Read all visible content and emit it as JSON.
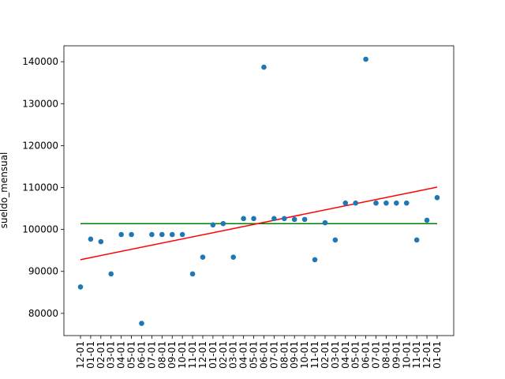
{
  "chart_data": {
    "type": "scatter",
    "y_label": "sueldo_mensual",
    "categories": [
      "12-01",
      "01-01",
      "02-01",
      "03-01",
      "04-01",
      "05-01",
      "06-01",
      "07-01",
      "08-01",
      "09-01",
      "10-01",
      "11-01",
      "12-01",
      "01-01",
      "02-01",
      "03-01",
      "04-01",
      "05-01",
      "06-01",
      "07-01",
      "08-01",
      "09-01",
      "10-01",
      "11-01",
      "02-01",
      "03-01",
      "04-01",
      "05-01",
      "06-01",
      "07-01",
      "08-01",
      "09-01",
      "10-01",
      "11-01",
      "12-01",
      "01-01"
    ],
    "values": [
      86300,
      97700,
      97100,
      89400,
      98800,
      98800,
      77600,
      98800,
      98800,
      98800,
      98800,
      89400,
      93400,
      101100,
      101400,
      93400,
      102600,
      102600,
      138700,
      102600,
      102600,
      102400,
      102400,
      92800,
      101600,
      97500,
      106300,
      106300,
      140600,
      106300,
      106300,
      106300,
      106300,
      97500,
      102200,
      107600
    ],
    "color": "#1f77b4",
    "trend": {
      "color": "#ff0000",
      "values": [
        92800,
        110100
      ]
    },
    "mean": {
      "color": "#008000",
      "value": 101400
    },
    "ylim": [
      74700,
      143800
    ],
    "yticks": [
      80000,
      90000,
      100000,
      110000,
      120000,
      130000,
      140000
    ]
  }
}
